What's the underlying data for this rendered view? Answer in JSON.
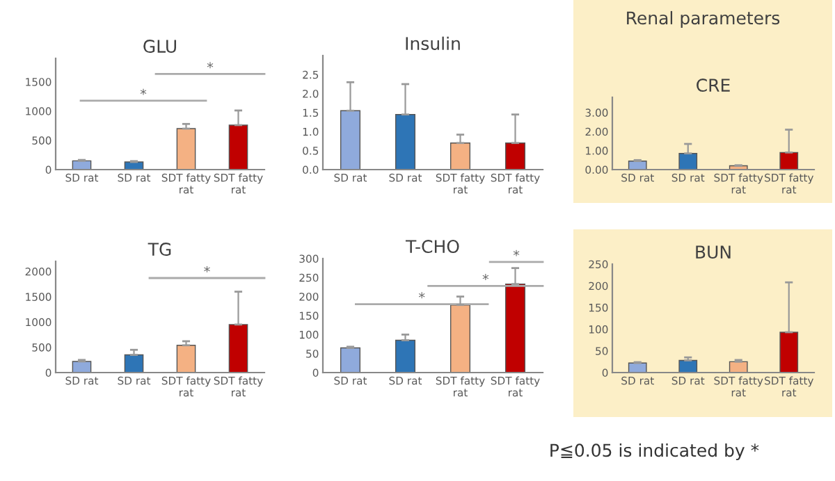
{
  "chart_data": [
    {
      "type": "bar",
      "title": "GLU",
      "categories": [
        "SD rat",
        "SD rat",
        "SDT fatty rat",
        "SDT fatty rat"
      ],
      "colors": [
        "#8faadc",
        "#2e75b6",
        "#f4b183",
        "#c00000"
      ],
      "values": [
        150,
        130,
        700,
        760
      ],
      "errors": [
        [
          150,
          165
        ],
        [
          130,
          145
        ],
        [
          700,
          780
        ],
        [
          760,
          1010
        ]
      ],
      "ylim": [
        0,
        1900
      ],
      "yticks": [
        0,
        500,
        1000,
        1500
      ],
      "annotations": [
        "*",
        "*"
      ]
    },
    {
      "type": "bar",
      "title": "Insulin",
      "categories": [
        "SD rat",
        "SD rat",
        "SDT fatty rat",
        "SDT fatty rat"
      ],
      "colors": [
        "#8faadc",
        "#2e75b6",
        "#f4b183",
        "#c00000"
      ],
      "values": [
        1.55,
        1.45,
        0.7,
        0.7
      ],
      "errors": [
        [
          1.55,
          2.3
        ],
        [
          1.45,
          2.25
        ],
        [
          0.7,
          0.92
        ],
        [
          0.7,
          1.45
        ]
      ],
      "ylim": [
        0,
        3.0
      ],
      "yticks": [
        {
          "value": 0,
          "label": "0.0"
        },
        {
          "value": 0.5,
          "label": "0.5"
        },
        {
          "value": 1,
          "label": "1.0"
        },
        {
          "value": 1.5,
          "label": "1.5"
        },
        {
          "value": 2,
          "label": "2.0"
        },
        {
          "value": 2.5,
          "label": "2.5"
        }
      ]
    },
    {
      "type": "bar",
      "title": "CRE",
      "categories": [
        "SD rat",
        "SD rat",
        "SDT fatty rat",
        "SDT fatty rat"
      ],
      "colors": [
        "#8faadc",
        "#2e75b6",
        "#f4b183",
        "#c00000"
      ],
      "values": [
        0.45,
        0.85,
        0.2,
        0.9
      ],
      "errors": [
        [
          0.45,
          0.5
        ],
        [
          0.85,
          1.35
        ],
        [
          0.2,
          0.23
        ],
        [
          0.9,
          2.1
        ]
      ],
      "ylim": [
        0,
        3.8
      ],
      "yticks": [
        {
          "value": 0,
          "label": "0.00"
        },
        {
          "value": 1,
          "label": "1.00"
        },
        {
          "value": 2,
          "label": "2.00"
        },
        {
          "value": 3,
          "label": "3.00"
        }
      ],
      "annotations": [
        "Renal parameters"
      ]
    },
    {
      "type": "bar",
      "title": "TG",
      "categories": [
        "SD rat",
        "SD rat",
        "SDT fatty rat",
        "SDT fatty rat"
      ],
      "colors": [
        "#8faadc",
        "#2e75b6",
        "#f4b183",
        "#c00000"
      ],
      "values": [
        220,
        350,
        540,
        950
      ],
      "errors": [
        [
          220,
          250
        ],
        [
          350,
          450
        ],
        [
          540,
          620
        ],
        [
          950,
          1600
        ]
      ],
      "ylim": [
        0,
        2200
      ],
      "yticks": [
        0,
        500,
        1000,
        1500,
        2000
      ],
      "annotations": [
        "*"
      ]
    },
    {
      "type": "bar",
      "title": "T-CHO",
      "categories": [
        "SD rat",
        "SD rat",
        "SDT fatty rat",
        "SDT fatty rat"
      ],
      "colors": [
        "#8faadc",
        "#2e75b6",
        "#f4b183",
        "#c00000"
      ],
      "values": [
        65,
        85,
        178,
        233
      ],
      "errors": [
        [
          65,
          68
        ],
        [
          85,
          100
        ],
        [
          178,
          200
        ],
        [
          233,
          275
        ]
      ],
      "ylim": [
        0,
        300
      ],
      "yticks": [
        0,
        50,
        100,
        150,
        200,
        250,
        300
      ],
      "annotations": [
        "*",
        "*",
        "*"
      ]
    },
    {
      "type": "bar",
      "title": "BUN",
      "categories": [
        "SD rat",
        "SD rat",
        "SDT fatty rat",
        "SDT fatty rat"
      ],
      "colors": [
        "#8faadc",
        "#2e75b6",
        "#f4b183",
        "#c00000"
      ],
      "values": [
        22,
        28,
        25,
        93
      ],
      "errors": [
        [
          22,
          24
        ],
        [
          28,
          35
        ],
        [
          25,
          29
        ],
        [
          93,
          208
        ]
      ],
      "ylim": [
        0,
        250
      ],
      "yticks": [
        0,
        50,
        100,
        150,
        200,
        250
      ],
      "annotations": [
        "P≦0.05 is indicated by *"
      ]
    }
  ]
}
